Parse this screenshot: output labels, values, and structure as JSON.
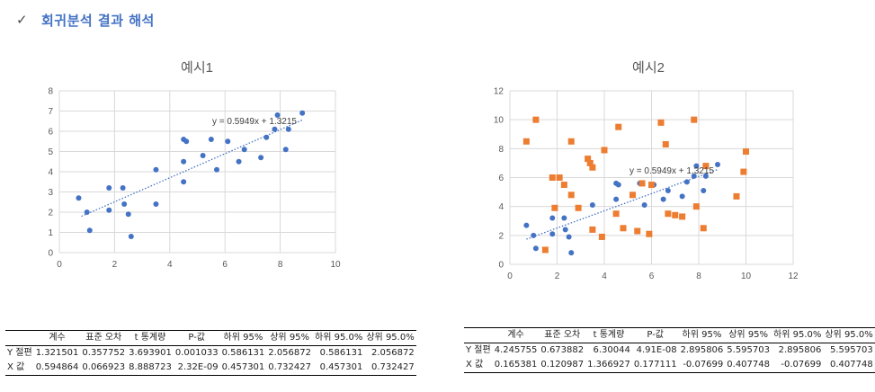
{
  "heading": {
    "check_icon": "checkmark-icon",
    "title": "회귀분석 결과 해석"
  },
  "chart_data": [
    {
      "type": "scatter",
      "title": "예시1",
      "xlim": [
        0,
        10
      ],
      "ylim": [
        0,
        8
      ],
      "xticks": [
        0,
        2,
        4,
        6,
        8,
        10
      ],
      "yticks": [
        0,
        1,
        2,
        3,
        4,
        5,
        6,
        7,
        8
      ],
      "grid": true,
      "trendline": {
        "slope": 0.5949,
        "intercept": 1.3215,
        "x_range": [
          0.8,
          8.8
        ],
        "label": "y = 0.5949x + 1.3215"
      },
      "series": [
        {
          "color": "#4472c4",
          "marker": "circle",
          "x": [
            0.7,
            1.0,
            1.1,
            1.8,
            1.8,
            2.3,
            2.35,
            2.5,
            2.6,
            3.5,
            3.5,
            4.5,
            4.5,
            4.5,
            4.6,
            5.2,
            5.5,
            5.7,
            6.1,
            6.5,
            6.7,
            7.3,
            7.5,
            7.8,
            7.9,
            8.2,
            8.3,
            8.8
          ],
          "y": [
            2.7,
            2.0,
            1.1,
            2.1,
            3.2,
            3.2,
            2.4,
            1.9,
            0.8,
            4.1,
            2.4,
            4.5,
            3.5,
            5.6,
            5.5,
            4.8,
            5.6,
            4.1,
            5.5,
            4.5,
            5.1,
            4.7,
            5.7,
            6.1,
            6.8,
            5.1,
            6.1,
            6.9
          ]
        }
      ]
    },
    {
      "type": "scatter",
      "title": "예시2",
      "xlim": [
        0,
        12
      ],
      "ylim": [
        0,
        12
      ],
      "xticks": [
        0,
        2,
        4,
        6,
        8,
        10,
        12
      ],
      "yticks": [
        0,
        2,
        4,
        6,
        8,
        10,
        12
      ],
      "grid": true,
      "trendline": {
        "slope": 0.5949,
        "intercept": 1.3215,
        "x_range": [
          0.7,
          8.8
        ],
        "label": "y = 0.5949x + 1.3215"
      },
      "series": [
        {
          "color": "#4472c4",
          "marker": "circle",
          "x": [
            0.7,
            1.0,
            1.1,
            1.8,
            1.8,
            2.3,
            2.35,
            2.5,
            2.6,
            3.5,
            3.5,
            4.5,
            4.5,
            4.5,
            4.6,
            5.2,
            5.5,
            5.7,
            6.1,
            6.5,
            6.7,
            7.3,
            7.5,
            7.8,
            7.9,
            8.2,
            8.3,
            8.8
          ],
          "y": [
            2.7,
            2.0,
            1.1,
            2.1,
            3.2,
            3.2,
            2.4,
            1.9,
            0.8,
            4.1,
            2.4,
            4.5,
            3.5,
            5.6,
            5.5,
            4.8,
            5.6,
            4.1,
            5.5,
            4.5,
            5.1,
            4.7,
            5.7,
            6.1,
            6.8,
            5.1,
            6.1,
            6.9
          ]
        },
        {
          "color": "#ed7d31",
          "marker": "square",
          "x": [
            0.7,
            1.1,
            1.5,
            1.8,
            1.9,
            2.1,
            2.3,
            2.6,
            2.6,
            2.9,
            3.3,
            3.4,
            3.5,
            3.5,
            3.9,
            4.0,
            4.5,
            4.6,
            4.8,
            5.2,
            5.4,
            5.6,
            5.9,
            6.0,
            6.4,
            6.6,
            6.7,
            7.0,
            7.3,
            7.8,
            7.9,
            8.2,
            8.3,
            9.6,
            9.9,
            10.0
          ],
          "y": [
            8.5,
            10.0,
            1.0,
            6.0,
            3.9,
            6.0,
            5.5,
            8.5,
            4.8,
            3.9,
            7.3,
            7.0,
            6.7,
            2.4,
            1.9,
            7.9,
            3.5,
            9.5,
            2.5,
            4.8,
            2.3,
            5.6,
            2.1,
            5.5,
            9.8,
            8.3,
            3.5,
            3.4,
            3.3,
            10.0,
            4.0,
            2.5,
            6.8,
            4.7,
            6.4,
            7.8
          ]
        }
      ]
    }
  ],
  "tables": [
    {
      "columns": [
        "",
        "계수",
        "표준 오차",
        "t 통계량",
        "P-값",
        "하위 95%",
        "상위 95%",
        "하위 95.0%",
        "상위 95.0%"
      ],
      "rows": [
        [
          "Y 절편",
          "1.321501",
          "0.357752",
          "3.693901",
          "0.001033",
          "0.586131",
          "2.056872",
          "0.586131",
          "2.056872"
        ],
        [
          "X 값",
          "0.594864",
          "0.066923",
          "8.888723",
          "2.32E-09",
          "0.457301",
          "0.732427",
          "0.457301",
          "0.732427"
        ]
      ]
    },
    {
      "columns": [
        "",
        "계수",
        "표준 오차",
        "t 통계량",
        "P-값",
        "하위 95%",
        "상위 95%",
        "하위 95.0%",
        "상위 95.0%"
      ],
      "rows": [
        [
          "Y 절편",
          "4.245755",
          "0.673882",
          "6.30044",
          "4.91E-08",
          "2.895806",
          "5.595703",
          "2.895806",
          "5.595703"
        ],
        [
          "X 값",
          "0.165381",
          "0.120987",
          "1.366927",
          "0.177111",
          "-0.07699",
          "0.407748",
          "-0.07699",
          "0.407748"
        ]
      ]
    }
  ]
}
